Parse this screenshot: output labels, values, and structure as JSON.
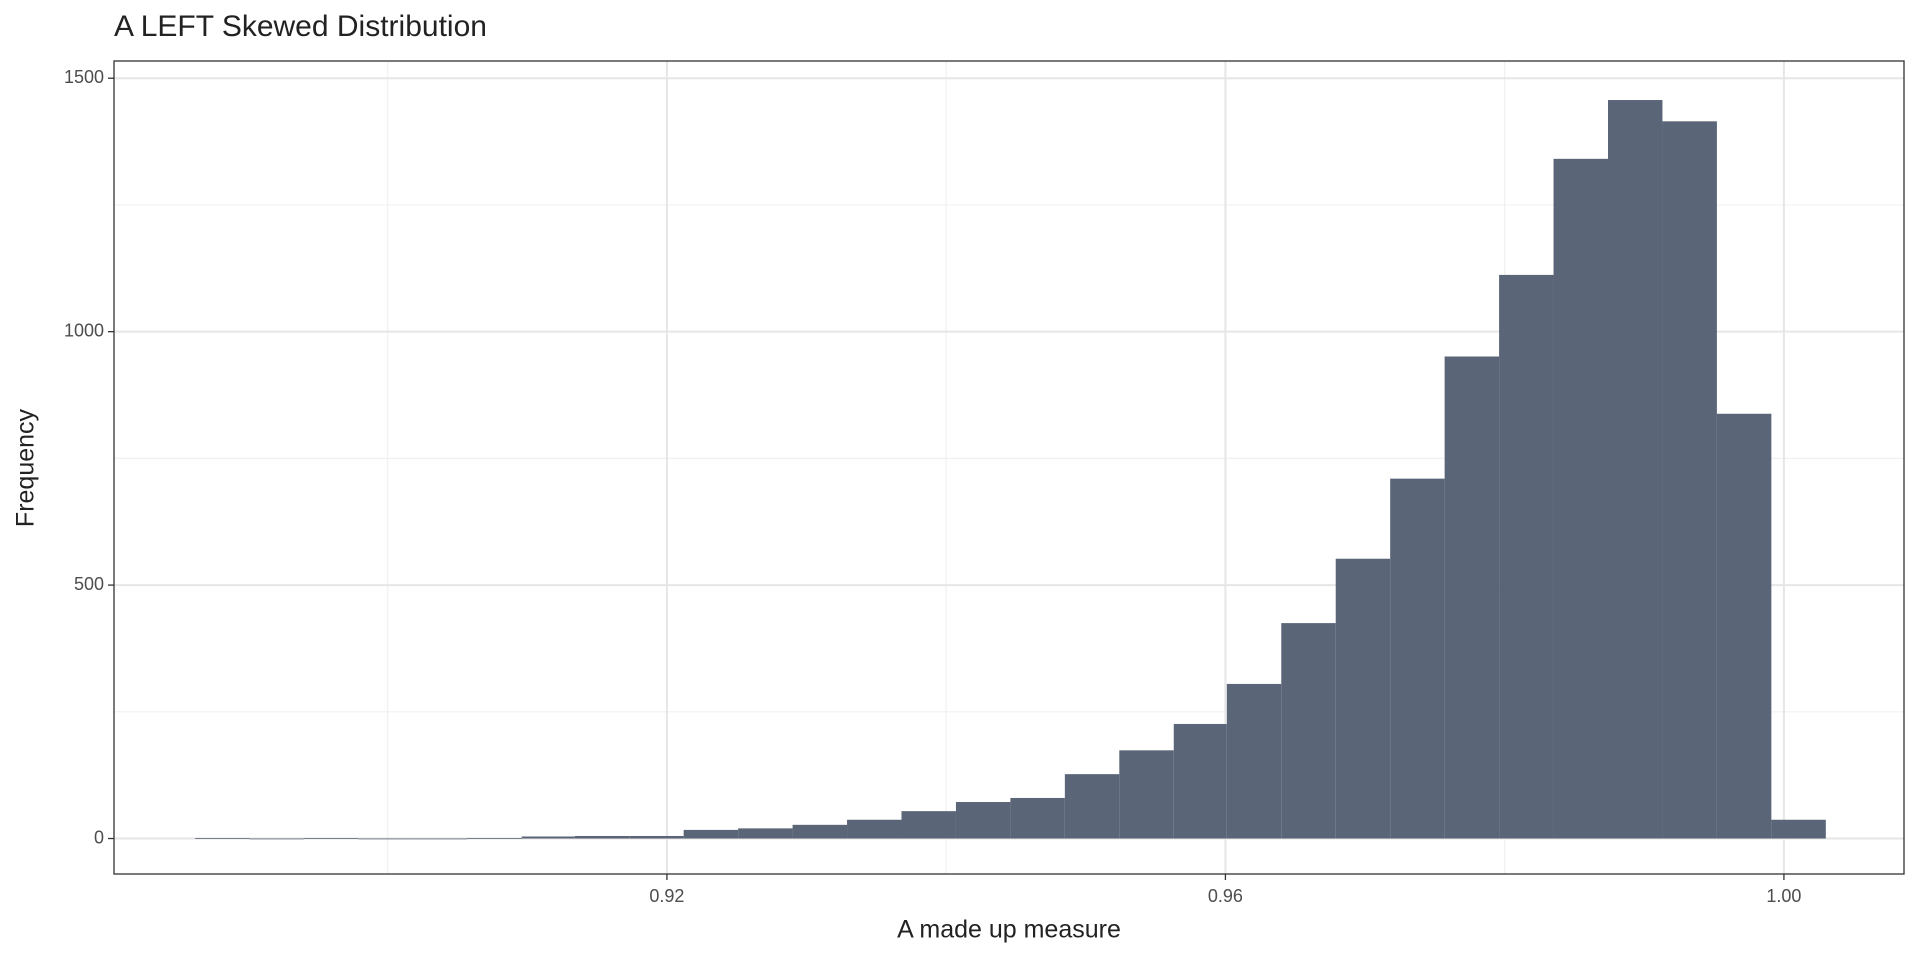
{
  "chart_data": {
    "type": "histogram",
    "title": "A LEFT Skewed Distribution",
    "x_label": "A made up measure",
    "y_label": "Frequency",
    "bins": [
      0.8862,
      0.8901,
      0.894,
      0.8979,
      0.9018,
      0.9057,
      0.9096,
      0.9134,
      0.9173,
      0.9212,
      0.9251,
      0.929,
      0.9329,
      0.9368,
      0.9407,
      0.9446,
      0.9485,
      0.9524,
      0.9563,
      0.9601,
      0.964,
      0.9679,
      0.9718,
      0.9757,
      0.9796,
      0.9835,
      0.9874,
      0.9913,
      0.9952,
      0.9991,
      1.003
    ],
    "values": [
      1,
      0,
      1,
      0,
      0,
      1,
      4,
      5,
      5,
      17,
      20,
      27,
      37,
      54,
      72,
      80,
      127,
      174,
      226,
      305,
      425,
      552,
      710,
      951,
      1112,
      1341,
      1457,
      1415,
      838,
      37
    ],
    "color": "#5a6577",
    "xlim": [
      0.8804,
      1.0086
    ],
    "ylim": [
      -70,
      1534
    ],
    "xticks": [
      {
        "value": 0.92,
        "label": "0.92"
      },
      0.96,
      {
        "value": 1,
        "label": "1.00"
      }
    ],
    "yticks": [
      0,
      500,
      1000,
      1500
    ],
    "xminorticks": [
      0.9,
      0.94,
      0.98
    ],
    "yminorticks": [
      250,
      750,
      1250
    ],
    "grid": true
  }
}
